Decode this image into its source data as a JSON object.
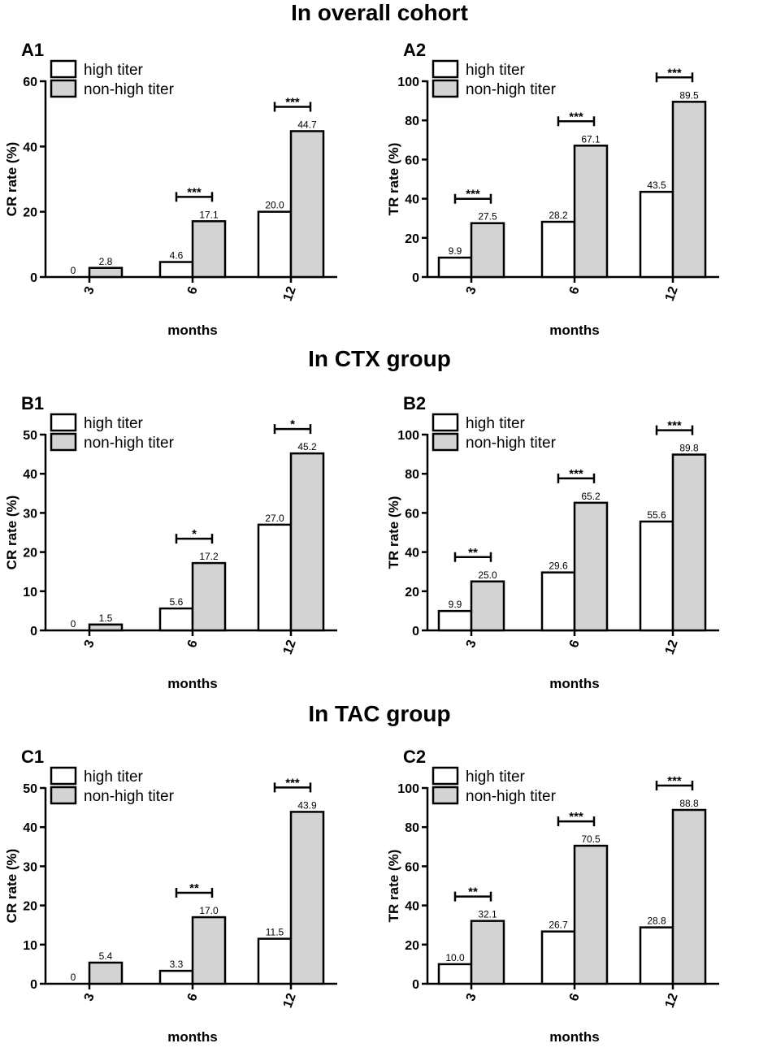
{
  "section_titles": [
    "In overall cohort",
    "In CTX group",
    "In TAC group"
  ],
  "colors": {
    "high": "#ffffff",
    "non_high": "#d3d3d3",
    "stroke": "#000000"
  },
  "chart_data": [
    {
      "type": "bar",
      "panel": "A1",
      "section": "In overall cohort",
      "categories": [
        "3",
        "6",
        "12"
      ],
      "series": [
        {
          "name": "high titer",
          "values": [
            0,
            4.6,
            20.0
          ],
          "labels": [
            "0",
            "4.6",
            "20.0"
          ]
        },
        {
          "name": "non-high titer",
          "values": [
            2.8,
            17.1,
            44.7
          ],
          "labels": [
            "2.8",
            "17.1",
            "44.7"
          ]
        }
      ],
      "xlabel": "months",
      "ylabel": "CR rate (%)",
      "ylim": [
        0,
        60
      ],
      "yticks": [
        "0",
        "20",
        "40",
        "60"
      ],
      "significance": [
        "",
        "***",
        "***"
      ],
      "legend": "top-left"
    },
    {
      "type": "bar",
      "panel": "A2",
      "section": "In overall cohort",
      "categories": [
        "3",
        "6",
        "12"
      ],
      "series": [
        {
          "name": "high titer",
          "values": [
            9.9,
            28.2,
            43.5
          ],
          "labels": [
            "9.9",
            "28.2",
            "43.5"
          ]
        },
        {
          "name": "non-high titer",
          "values": [
            27.5,
            67.1,
            89.5
          ],
          "labels": [
            "27.5",
            "67.1",
            "89.5"
          ]
        }
      ],
      "xlabel": "months",
      "ylabel": "TR rate (%)",
      "ylim": [
        0,
        100
      ],
      "yticks": [
        "0",
        "20",
        "40",
        "60",
        "80",
        "100"
      ],
      "significance": [
        "***",
        "***",
        "***"
      ],
      "legend": "top-left"
    },
    {
      "type": "bar",
      "panel": "B1",
      "section": "In CTX group",
      "categories": [
        "3",
        "6",
        "12"
      ],
      "series": [
        {
          "name": "high titer",
          "values": [
            0,
            5.6,
            27.0
          ],
          "labels": [
            "0",
            "5.6",
            "27.0"
          ]
        },
        {
          "name": "non-high titer",
          "values": [
            1.5,
            17.2,
            45.2
          ],
          "labels": [
            "1.5",
            "17.2",
            "45.2"
          ]
        }
      ],
      "xlabel": "months",
      "ylabel": "CR rate (%)",
      "ylim": [
        0,
        50
      ],
      "yticks": [
        "0",
        "10",
        "20",
        "30",
        "40",
        "50"
      ],
      "significance": [
        "",
        "*",
        "*"
      ],
      "legend": "top-left"
    },
    {
      "type": "bar",
      "panel": "B2",
      "section": "In CTX group",
      "categories": [
        "3",
        "6",
        "12"
      ],
      "series": [
        {
          "name": "high titer",
          "values": [
            9.9,
            29.6,
            55.6
          ],
          "labels": [
            "9.9",
            "29.6",
            "55.6"
          ]
        },
        {
          "name": "non-high titer",
          "values": [
            25.0,
            65.2,
            89.8
          ],
          "labels": [
            "25.0",
            "65.2",
            "89.8"
          ]
        }
      ],
      "xlabel": "months",
      "ylabel": "TR rate (%)",
      "ylim": [
        0,
        100
      ],
      "yticks": [
        "0",
        "20",
        "40",
        "60",
        "80",
        "100"
      ],
      "significance": [
        "**",
        "***",
        "***"
      ],
      "legend": "top-left"
    },
    {
      "type": "bar",
      "panel": "C1",
      "section": "In TAC group",
      "categories": [
        "3",
        "6",
        "12"
      ],
      "series": [
        {
          "name": "high titer",
          "values": [
            0,
            3.3,
            11.5
          ],
          "labels": [
            "0",
            "3.3",
            "11.5"
          ]
        },
        {
          "name": "non-high titer",
          "values": [
            5.4,
            17.0,
            43.9
          ],
          "labels": [
            "5.4",
            "17.0",
            "43.9"
          ]
        }
      ],
      "xlabel": "months",
      "ylabel": "CR rate (%)",
      "ylim": [
        0,
        50
      ],
      "yticks": [
        "0",
        "10",
        "20",
        "30",
        "40",
        "50"
      ],
      "significance": [
        "",
        "**",
        "***"
      ],
      "legend": "top-left"
    },
    {
      "type": "bar",
      "panel": "C2",
      "section": "In TAC group",
      "categories": [
        "3",
        "6",
        "12"
      ],
      "series": [
        {
          "name": "high titer",
          "values": [
            10.0,
            26.7,
            28.8
          ],
          "labels": [
            "10.0",
            "26.7",
            "28.8"
          ]
        },
        {
          "name": "non-high titer",
          "values": [
            32.1,
            70.5,
            88.8
          ],
          "labels": [
            "32.1",
            "70.5",
            "88.8"
          ]
        }
      ],
      "xlabel": "months",
      "ylabel": "TR rate (%)",
      "ylim": [
        0,
        100
      ],
      "yticks": [
        "0",
        "20",
        "40",
        "60",
        "80",
        "100"
      ],
      "significance": [
        "**",
        "***",
        "***"
      ],
      "legend": "top-left"
    }
  ]
}
